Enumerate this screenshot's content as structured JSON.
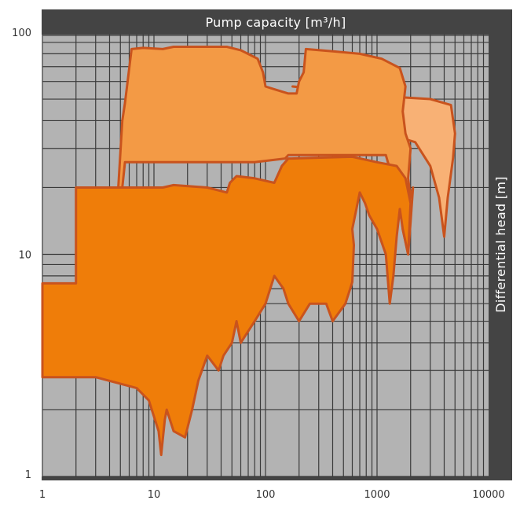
{
  "chart_data": {
    "type": "area",
    "title": "",
    "xlabel": "Pump capacity  [m³/h]",
    "ylabel": "Differential head  [m]",
    "x_scale": "log",
    "y_scale": "log",
    "xlim": [
      1,
      10000
    ],
    "ylim": [
      1,
      100
    ],
    "x_ticks": [
      "1",
      "10",
      "100",
      "1000",
      "10000"
    ],
    "y_ticks": [
      "100",
      "10",
      "1"
    ],
    "grid": true,
    "legend": "none",
    "colors": {
      "plot_background": "#b3b3b3",
      "frame": "#444444",
      "outline": "#c9531d",
      "region_light": "#f8b175",
      "region_mid": "#f39a45",
      "region_dark": "#ef7d09"
    },
    "regions": [
      {
        "shade": "region_light",
        "outline": [
          [
            175,
            57
          ],
          [
            270,
            56
          ],
          [
            380,
            55
          ],
          [
            420,
            54
          ],
          [
            560,
            53
          ],
          [
            700,
            53
          ],
          [
            1000,
            53
          ],
          [
            1600,
            51
          ],
          [
            3000,
            50
          ],
          [
            4600,
            47
          ],
          [
            5000,
            35
          ],
          [
            4800,
            27
          ],
          [
            4300,
            18
          ],
          [
            4000,
            12
          ],
          [
            3600,
            18
          ],
          [
            3000,
            25
          ],
          [
            2200,
            32
          ],
          [
            1800,
            33
          ],
          [
            1300,
            34
          ],
          [
            900,
            35
          ],
          [
            500,
            36
          ],
          [
            430,
            38
          ],
          [
            430,
            54
          ],
          [
            175,
            57
          ]
        ]
      },
      {
        "shade": "region_mid",
        "outline": [
          [
            6.3,
            84
          ],
          [
            8,
            85
          ],
          [
            12,
            84
          ],
          [
            15,
            86
          ],
          [
            25,
            86
          ],
          [
            45,
            86
          ],
          [
            60,
            83
          ],
          [
            85,
            76
          ],
          [
            95,
            66
          ],
          [
            100,
            57
          ],
          [
            125,
            55
          ],
          [
            160,
            53
          ],
          [
            190,
            53
          ],
          [
            200,
            60
          ],
          [
            220,
            66
          ],
          [
            230,
            84
          ],
          [
            400,
            82
          ],
          [
            700,
            80
          ],
          [
            1100,
            76
          ],
          [
            1600,
            69
          ],
          [
            1800,
            57
          ],
          [
            1700,
            44
          ],
          [
            1800,
            35
          ],
          [
            2000,
            30
          ],
          [
            1900,
            22
          ],
          [
            2000,
            18
          ],
          [
            2100,
            20
          ],
          [
            2000,
            14
          ],
          [
            1900,
            10
          ],
          [
            1700,
            13
          ],
          [
            1600,
            18
          ],
          [
            1400,
            22
          ],
          [
            1250,
            26
          ],
          [
            1200,
            28
          ],
          [
            800,
            28
          ],
          [
            500,
            28
          ],
          [
            300,
            28
          ],
          [
            200,
            28
          ],
          [
            160,
            28
          ],
          [
            150,
            27
          ],
          [
            80,
            26
          ],
          [
            35,
            26
          ],
          [
            30,
            26
          ],
          [
            5.5,
            26
          ],
          [
            5.2,
            20
          ],
          [
            5.1,
            17
          ],
          [
            4.6,
            14.3
          ],
          [
            5.2,
            40
          ],
          [
            5.5,
            48
          ],
          [
            6.3,
            84
          ]
        ]
      },
      {
        "shade": "region_dark",
        "outline": [
          [
            2,
            20
          ],
          [
            8,
            20
          ],
          [
            12,
            20
          ],
          [
            15,
            20.5
          ],
          [
            30,
            20
          ],
          [
            45,
            19
          ],
          [
            48,
            21
          ],
          [
            55,
            22.5
          ],
          [
            80,
            22
          ],
          [
            120,
            21
          ],
          [
            140,
            25
          ],
          [
            160,
            27
          ],
          [
            170,
            27
          ],
          [
            600,
            27.5
          ],
          [
            1000,
            26
          ],
          [
            1500,
            25
          ],
          [
            1800,
            22
          ],
          [
            2000,
            17
          ],
          [
            1900,
            10
          ],
          [
            1700,
            13
          ],
          [
            1600,
            16
          ],
          [
            1500,
            12
          ],
          [
            1400,
            8
          ],
          [
            1300,
            6
          ],
          [
            1200,
            10
          ],
          [
            1000,
            13
          ],
          [
            850,
            15
          ],
          [
            780,
            17
          ],
          [
            700,
            19
          ],
          [
            600,
            13
          ],
          [
            620,
            11
          ],
          [
            600,
            7.5
          ],
          [
            520,
            6
          ],
          [
            400,
            5
          ],
          [
            350,
            6
          ],
          [
            250,
            6
          ],
          [
            200,
            5
          ],
          [
            160,
            6
          ],
          [
            145,
            7
          ],
          [
            120,
            8
          ],
          [
            100,
            6
          ],
          [
            80,
            5
          ],
          [
            60,
            4
          ],
          [
            55,
            5
          ],
          [
            50,
            4
          ],
          [
            42,
            3.5
          ],
          [
            38,
            3
          ],
          [
            30,
            3.5
          ],
          [
            25,
            2.7
          ],
          [
            22,
            2
          ],
          [
            19,
            1.5
          ],
          [
            15,
            1.6
          ],
          [
            13,
            2
          ],
          [
            12.5,
            1.8
          ],
          [
            11.6,
            1.25
          ],
          [
            11,
            1.6
          ],
          [
            9,
            2.2
          ],
          [
            7,
            2.5
          ],
          [
            3,
            2.8
          ],
          [
            1,
            2.8
          ],
          [
            1,
            7.4
          ],
          [
            2,
            7.4
          ],
          [
            2,
            20
          ]
        ]
      }
    ]
  }
}
